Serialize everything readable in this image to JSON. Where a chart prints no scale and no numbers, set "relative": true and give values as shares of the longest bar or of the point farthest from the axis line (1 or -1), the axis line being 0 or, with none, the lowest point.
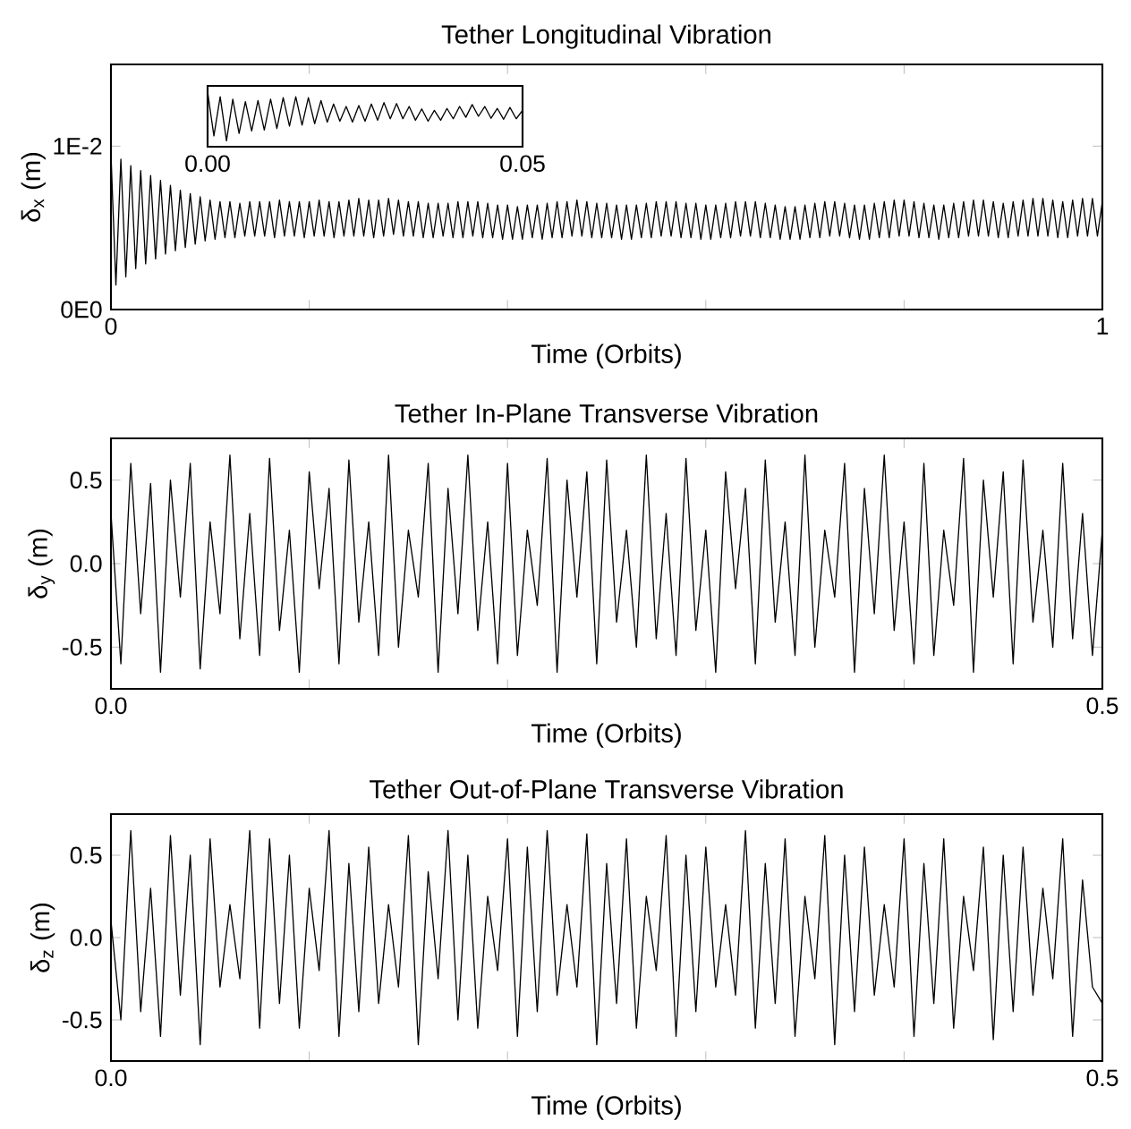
{
  "chart_data": [
    {
      "type": "line",
      "title": "Tether Longitudinal Vibration",
      "xlabel": "Time (Orbits)",
      "ylabel": "δ$_{x}$ (m)",
      "xlim": [
        0,
        1
      ],
      "ylim": [
        0,
        0.015
      ],
      "xticks": [
        {
          "value": 0,
          "label": "0"
        },
        {
          "value": 0.2,
          "label": null
        },
        {
          "value": 0.4,
          "label": null
        },
        {
          "value": 0.6,
          "label": null
        },
        {
          "value": 0.8,
          "label": null
        },
        {
          "value": 1,
          "label": "1"
        }
      ],
      "yticks": [
        {
          "value": 0,
          "label": "0E0"
        },
        {
          "value": 0.01,
          "label": "1E-2"
        }
      ],
      "x": [
        0,
        0.005,
        0.01,
        0.015,
        0.02,
        0.025,
        0.03,
        0.035,
        0.04,
        0.045,
        0.05,
        0.055,
        0.06,
        0.065,
        0.07,
        0.075,
        0.08,
        0.085,
        0.09,
        0.095,
        0.1,
        0.105,
        0.11,
        0.115,
        0.12,
        0.125,
        0.13,
        0.135,
        0.14,
        0.145,
        0.15,
        0.155,
        0.16,
        0.165,
        0.17,
        0.175,
        0.18,
        0.185,
        0.19,
        0.195,
        0.2,
        0.205,
        0.21,
        0.215,
        0.22,
        0.225,
        0.23,
        0.235,
        0.24,
        0.245,
        0.25,
        0.255,
        0.26,
        0.265,
        0.27,
        0.275,
        0.28,
        0.285,
        0.29,
        0.295,
        0.3,
        0.305,
        0.31,
        0.315,
        0.32,
        0.325,
        0.33,
        0.335,
        0.34,
        0.345,
        0.35,
        0.355,
        0.36,
        0.365,
        0.37,
        0.375,
        0.38,
        0.385,
        0.39,
        0.395,
        0.4,
        0.405,
        0.41,
        0.415,
        0.42,
        0.425,
        0.43,
        0.435,
        0.44,
        0.445,
        0.45,
        0.455,
        0.46,
        0.465,
        0.47,
        0.475,
        0.48,
        0.485,
        0.49,
        0.495,
        0.5,
        0.505,
        0.51,
        0.515,
        0.52,
        0.525,
        0.53,
        0.535,
        0.54,
        0.545,
        0.55,
        0.555,
        0.56,
        0.565,
        0.57,
        0.575,
        0.58,
        0.585,
        0.59,
        0.595,
        0.6,
        0.605,
        0.61,
        0.615,
        0.62,
        0.625,
        0.63,
        0.635,
        0.64,
        0.645,
        0.65,
        0.655,
        0.66,
        0.665,
        0.67,
        0.675,
        0.68,
        0.685,
        0.69,
        0.695,
        0.7,
        0.705,
        0.71,
        0.715,
        0.72,
        0.725,
        0.73,
        0.735,
        0.74,
        0.745,
        0.75,
        0.755,
        0.76,
        0.765,
        0.77,
        0.775,
        0.78,
        0.785,
        0.79,
        0.795,
        0.8,
        0.805,
        0.81,
        0.815,
        0.82,
        0.825,
        0.83,
        0.835,
        0.84,
        0.845,
        0.85,
        0.855,
        0.86,
        0.865,
        0.87,
        0.875,
        0.88,
        0.885,
        0.89,
        0.895,
        0.9,
        0.905,
        0.91,
        0.915,
        0.92,
        0.925,
        0.93,
        0.935,
        0.94,
        0.945,
        0.95,
        0.955,
        0.96,
        0.965,
        0.97,
        0.975,
        0.98,
        0.985,
        0.99,
        0.995,
        1
      ],
      "series": [
        {
          "color": "#000000",
          "values": [
            0.0095,
            0.0015,
            0.0092,
            0.002,
            0.0088,
            0.0025,
            0.0085,
            0.0028,
            0.0082,
            0.0031,
            0.0079,
            0.0034,
            0.0076,
            0.0036,
            0.0073,
            0.0038,
            0.0071,
            0.004,
            0.0069,
            0.0042,
            0.0067,
            0.0043,
            0.0066,
            0.0044,
            0.0066,
            0.0044,
            0.0065,
            0.0045,
            0.0066,
            0.0045,
            0.0066,
            0.0045,
            0.0066,
            0.0044,
            0.0067,
            0.0045,
            0.0066,
            0.0045,
            0.0066,
            0.0044,
            0.0066,
            0.0045,
            0.0067,
            0.0045,
            0.0066,
            0.0044,
            0.0066,
            0.0045,
            0.0067,
            0.0045,
            0.0068,
            0.0045,
            0.0067,
            0.0044,
            0.0067,
            0.0045,
            0.0068,
            0.0046,
            0.0067,
            0.0045,
            0.0066,
            0.0045,
            0.0066,
            0.0044,
            0.0065,
            0.0044,
            0.0065,
            0.0045,
            0.0065,
            0.0044,
            0.0066,
            0.0044,
            0.0066,
            0.0045,
            0.0066,
            0.0044,
            0.0065,
            0.0044,
            0.0064,
            0.0043,
            0.0064,
            0.0043,
            0.0063,
            0.0043,
            0.0064,
            0.0044,
            0.0064,
            0.0043,
            0.0065,
            0.0044,
            0.0066,
            0.0044,
            0.0066,
            0.0045,
            0.0067,
            0.0045,
            0.0066,
            0.0044,
            0.0065,
            0.0044,
            0.0065,
            0.0044,
            0.0064,
            0.0043,
            0.0064,
            0.0043,
            0.0064,
            0.0044,
            0.0065,
            0.0044,
            0.0066,
            0.0045,
            0.0066,
            0.0045,
            0.0066,
            0.0044,
            0.0065,
            0.0044,
            0.0065,
            0.0043,
            0.0064,
            0.0043,
            0.0064,
            0.0044,
            0.0065,
            0.0044,
            0.0066,
            0.0045,
            0.0066,
            0.0045,
            0.0066,
            0.0044,
            0.0065,
            0.0044,
            0.0064,
            0.0043,
            0.0063,
            0.0043,
            0.0063,
            0.0043,
            0.0064,
            0.0044,
            0.0065,
            0.0044,
            0.0066,
            0.0045,
            0.0066,
            0.0045,
            0.0065,
            0.0044,
            0.0064,
            0.0043,
            0.0064,
            0.0043,
            0.0065,
            0.0044,
            0.0066,
            0.0044,
            0.0067,
            0.0045,
            0.0067,
            0.0045,
            0.0066,
            0.0044,
            0.0065,
            0.0044,
            0.0064,
            0.0043,
            0.0064,
            0.0044,
            0.0065,
            0.0044,
            0.0066,
            0.0045,
            0.0067,
            0.0045,
            0.0067,
            0.0045,
            0.0066,
            0.0044,
            0.0065,
            0.0044,
            0.0066,
            0.0045,
            0.0067,
            0.0045,
            0.0068,
            0.0045,
            0.0068,
            0.0045,
            0.0067,
            0.0044,
            0.0066,
            0.0044,
            0.0067,
            0.0045,
            0.0068,
            0.0045,
            0.0068,
            0.0045,
            0.0066
          ]
        }
      ]
    },
    {
      "type": "line",
      "relative": true,
      "tick_labels": "x",
      "xlim": [
        0,
        0.05
      ],
      "xticks": [
        {
          "value": 0,
          "label": "0.00"
        },
        {
          "value": 0.05,
          "label": "0.05"
        }
      ],
      "x": [
        0,
        0.001,
        0.002,
        0.003,
        0.004,
        0.005,
        0.006,
        0.007,
        0.008,
        0.009,
        0.01,
        0.011,
        0.012,
        0.013,
        0.014,
        0.015,
        0.016,
        0.017,
        0.018,
        0.019,
        0.02,
        0.021,
        0.022,
        0.023,
        0.024,
        0.025,
        0.026,
        0.027,
        0.028,
        0.029,
        0.03,
        0.031,
        0.032,
        0.033,
        0.034,
        0.035,
        0.036,
        0.037,
        0.038,
        0.039,
        0.04,
        0.041,
        0.042,
        0.043,
        0.044,
        0.045,
        0.046,
        0.047,
        0.048,
        0.049,
        0.05
      ],
      "series": [
        {
          "color": "#000000",
          "values": [
            1.0,
            0.1,
            0.9,
            0.0,
            0.85,
            0.15,
            0.8,
            0.2,
            0.82,
            0.22,
            0.85,
            0.25,
            0.88,
            0.3,
            0.9,
            0.32,
            0.88,
            0.35,
            0.82,
            0.38,
            0.75,
            0.4,
            0.7,
            0.38,
            0.72,
            0.4,
            0.75,
            0.42,
            0.78,
            0.45,
            0.76,
            0.45,
            0.7,
            0.42,
            0.65,
            0.4,
            0.62,
            0.42,
            0.66,
            0.45,
            0.7,
            0.48,
            0.74,
            0.5,
            0.7,
            0.46,
            0.66,
            0.44,
            0.68,
            0.45,
            0.62
          ]
        }
      ]
    },
    {
      "type": "line",
      "title": "Tether In-Plane Transverse Vibration",
      "xlabel": "Time (Orbits)",
      "ylabel": "δ$_{y}$ (m)",
      "xlim": [
        0,
        0.5
      ],
      "ylim": [
        -0.75,
        0.75
      ],
      "xticks": [
        {
          "value": 0,
          "label": "0.0"
        },
        {
          "value": 0.1,
          "label": null
        },
        {
          "value": 0.2,
          "label": null
        },
        {
          "value": 0.3,
          "label": null
        },
        {
          "value": 0.4,
          "label": null
        },
        {
          "value": 0.5,
          "label": "0.5"
        }
      ],
      "yticks": [
        {
          "value": -0.5,
          "label": "-0.5"
        },
        {
          "value": 0,
          "label": "0.0"
        },
        {
          "value": 0.5,
          "label": "0.5"
        }
      ],
      "x": [
        0,
        0.005,
        0.01,
        0.015,
        0.02,
        0.025,
        0.03,
        0.035,
        0.04,
        0.045,
        0.05,
        0.055,
        0.06,
        0.065,
        0.07,
        0.075,
        0.08,
        0.085,
        0.09,
        0.095,
        0.1,
        0.105,
        0.11,
        0.115,
        0.12,
        0.125,
        0.13,
        0.135,
        0.14,
        0.145,
        0.15,
        0.155,
        0.16,
        0.165,
        0.17,
        0.175,
        0.18,
        0.185,
        0.19,
        0.195,
        0.2,
        0.205,
        0.21,
        0.215,
        0.22,
        0.225,
        0.23,
        0.235,
        0.24,
        0.245,
        0.25,
        0.255,
        0.26,
        0.265,
        0.27,
        0.275,
        0.28,
        0.285,
        0.29,
        0.295,
        0.3,
        0.305,
        0.31,
        0.315,
        0.32,
        0.325,
        0.33,
        0.335,
        0.34,
        0.345,
        0.35,
        0.355,
        0.36,
        0.365,
        0.37,
        0.375,
        0.38,
        0.385,
        0.39,
        0.395,
        0.4,
        0.405,
        0.41,
        0.415,
        0.42,
        0.425,
        0.43,
        0.435,
        0.44,
        0.445,
        0.45,
        0.455,
        0.46,
        0.465,
        0.47,
        0.475,
        0.48,
        0.485,
        0.49,
        0.495,
        0.5
      ],
      "series": [
        {
          "color": "#000000",
          "values": [
            0.3,
            -0.6,
            0.6,
            -0.3,
            0.48,
            -0.65,
            0.5,
            -0.2,
            0.6,
            -0.63,
            0.25,
            -0.3,
            0.65,
            -0.45,
            0.3,
            -0.55,
            0.63,
            -0.4,
            0.2,
            -0.65,
            0.55,
            -0.15,
            0.45,
            -0.6,
            0.62,
            -0.35,
            0.25,
            -0.55,
            0.65,
            -0.5,
            0.2,
            -0.2,
            0.6,
            -0.65,
            0.45,
            -0.3,
            0.65,
            -0.4,
            0.25,
            -0.6,
            0.6,
            -0.55,
            0.2,
            -0.25,
            0.63,
            -0.65,
            0.5,
            -0.2,
            0.55,
            -0.6,
            0.62,
            -0.35,
            0.2,
            -0.5,
            0.65,
            -0.45,
            0.3,
            -0.55,
            0.63,
            -0.4,
            0.2,
            -0.65,
            0.55,
            -0.15,
            0.45,
            -0.6,
            0.62,
            -0.35,
            0.25,
            -0.55,
            0.65,
            -0.5,
            0.2,
            -0.2,
            0.6,
            -0.65,
            0.45,
            -0.3,
            0.65,
            -0.4,
            0.25,
            -0.6,
            0.6,
            -0.55,
            0.2,
            -0.25,
            0.63,
            -0.65,
            0.5,
            -0.2,
            0.55,
            -0.6,
            0.62,
            -0.35,
            0.2,
            -0.5,
            0.6,
            -0.45,
            0.3,
            -0.55,
            0.2
          ]
        }
      ]
    },
    {
      "type": "line",
      "title": "Tether Out-of-Plane Transverse Vibration",
      "xlabel": "Time (Orbits)",
      "ylabel": "δ$_{z}$ (m)",
      "xlim": [
        0,
        0.5
      ],
      "ylim": [
        -0.75,
        0.75
      ],
      "xticks": [
        {
          "value": 0,
          "label": "0.0"
        },
        {
          "value": 0.1,
          "label": null
        },
        {
          "value": 0.2,
          "label": null
        },
        {
          "value": 0.3,
          "label": null
        },
        {
          "value": 0.4,
          "label": null
        },
        {
          "value": 0.5,
          "label": "0.5"
        }
      ],
      "yticks": [
        {
          "value": -0.5,
          "label": "-0.5"
        },
        {
          "value": 0,
          "label": "0.0"
        },
        {
          "value": 0.5,
          "label": "0.5"
        }
      ],
      "x": [
        0,
        0.005,
        0.01,
        0.015,
        0.02,
        0.025,
        0.03,
        0.035,
        0.04,
        0.045,
        0.05,
        0.055,
        0.06,
        0.065,
        0.07,
        0.075,
        0.08,
        0.085,
        0.09,
        0.095,
        0.1,
        0.105,
        0.11,
        0.115,
        0.12,
        0.125,
        0.13,
        0.135,
        0.14,
        0.145,
        0.15,
        0.155,
        0.16,
        0.165,
        0.17,
        0.175,
        0.18,
        0.185,
        0.19,
        0.195,
        0.2,
        0.205,
        0.21,
        0.215,
        0.22,
        0.225,
        0.23,
        0.235,
        0.24,
        0.245,
        0.25,
        0.255,
        0.26,
        0.265,
        0.27,
        0.275,
        0.28,
        0.285,
        0.29,
        0.295,
        0.3,
        0.305,
        0.31,
        0.315,
        0.32,
        0.325,
        0.33,
        0.335,
        0.34,
        0.345,
        0.35,
        0.355,
        0.36,
        0.365,
        0.37,
        0.375,
        0.38,
        0.385,
        0.39,
        0.395,
        0.4,
        0.405,
        0.41,
        0.415,
        0.42,
        0.425,
        0.43,
        0.435,
        0.44,
        0.445,
        0.45,
        0.455,
        0.46,
        0.465,
        0.47,
        0.475,
        0.48,
        0.485,
        0.49,
        0.495,
        0.5
      ],
      "series": [
        {
          "color": "#000000",
          "values": [
            0.1,
            -0.5,
            0.65,
            -0.45,
            0.3,
            -0.6,
            0.62,
            -0.35,
            0.5,
            -0.65,
            0.6,
            -0.3,
            0.2,
            -0.25,
            0.65,
            -0.55,
            0.6,
            -0.4,
            0.5,
            -0.55,
            0.3,
            -0.2,
            0.65,
            -0.6,
            0.45,
            -0.45,
            0.55,
            -0.4,
            0.2,
            -0.3,
            0.62,
            -0.65,
            0.4,
            -0.25,
            0.65,
            -0.5,
            0.5,
            -0.55,
            0.25,
            -0.2,
            0.6,
            -0.6,
            0.55,
            -0.45,
            0.65,
            -0.35,
            0.2,
            -0.3,
            0.63,
            -0.65,
            0.45,
            -0.4,
            0.6,
            -0.55,
            0.25,
            -0.2,
            0.62,
            -0.6,
            0.5,
            -0.45,
            0.55,
            -0.3,
            0.2,
            -0.35,
            0.65,
            -0.55,
            0.45,
            -0.4,
            0.6,
            -0.6,
            0.25,
            -0.25,
            0.62,
            -0.65,
            0.5,
            -0.45,
            0.55,
            -0.35,
            0.2,
            -0.3,
            0.6,
            -0.6,
            0.45,
            -0.4,
            0.6,
            -0.55,
            0.25,
            -0.2,
            0.55,
            -0.62,
            0.5,
            -0.45,
            0.55,
            -0.35,
            0.3,
            -0.25,
            0.6,
            -0.6,
            0.35,
            -0.3,
            -0.4
          ]
        }
      ]
    }
  ]
}
